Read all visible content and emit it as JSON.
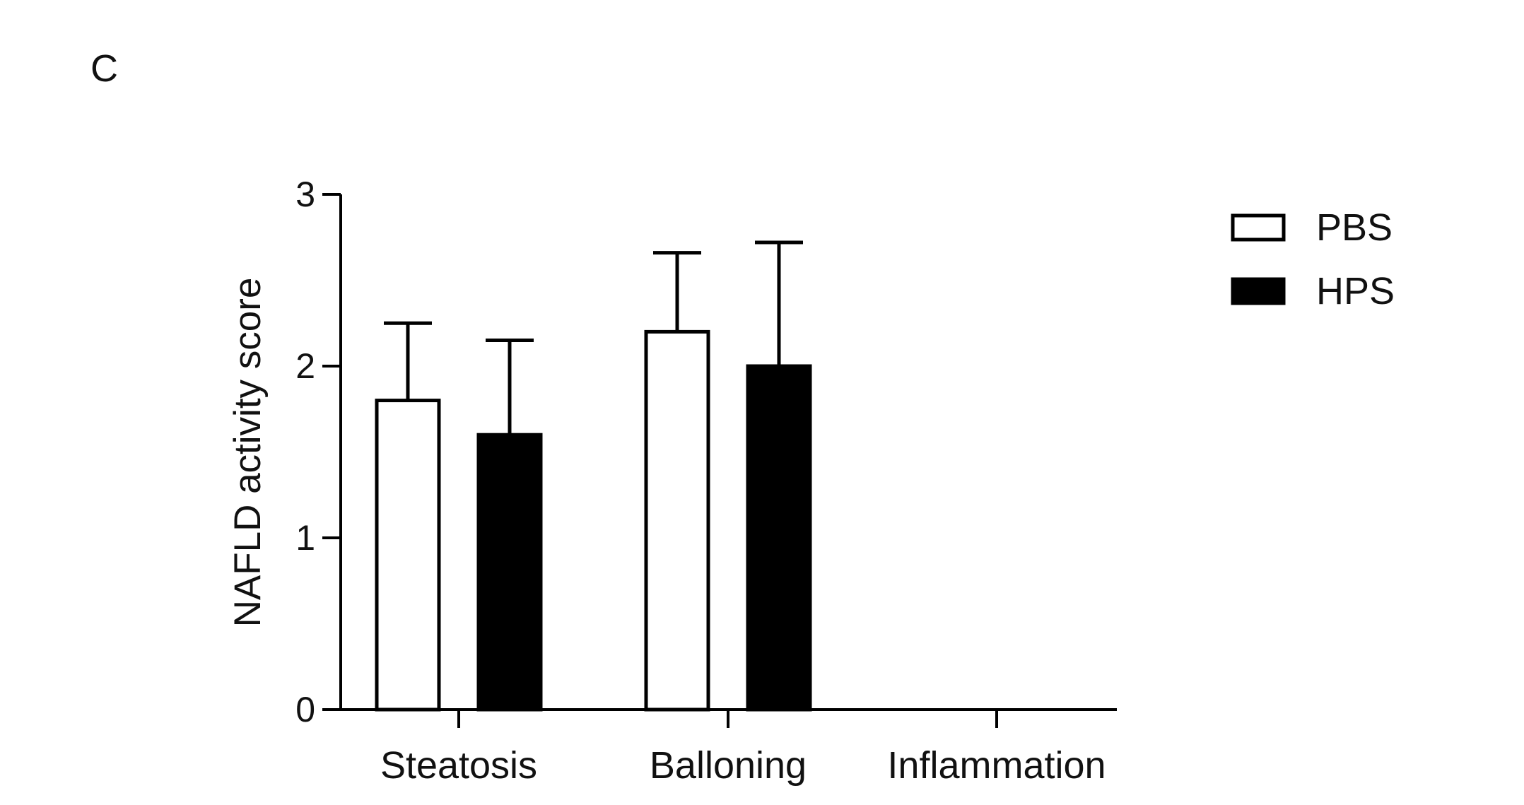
{
  "panel_label": "C",
  "chart_data": {
    "type": "bar",
    "title": "",
    "xlabel": "",
    "ylabel": "NAFLD activity score",
    "ylim": [
      0,
      3
    ],
    "yticks": [
      "0",
      "1",
      "2",
      "3"
    ],
    "grid": false,
    "legend_position": "top-right",
    "categories": [
      "Steatosis",
      "Balloning",
      "Inflammation"
    ],
    "series": [
      {
        "name": "PBS",
        "fill": "#ffffff",
        "stroke": "#000000",
        "values": [
          1.8,
          2.2,
          0
        ],
        "errors": [
          0.45,
          0.46,
          0
        ]
      },
      {
        "name": "HPS",
        "fill": "#000000",
        "stroke": "#000000",
        "values": [
          1.6,
          2.0,
          0
        ],
        "errors": [
          0.55,
          0.72,
          0
        ]
      }
    ]
  }
}
